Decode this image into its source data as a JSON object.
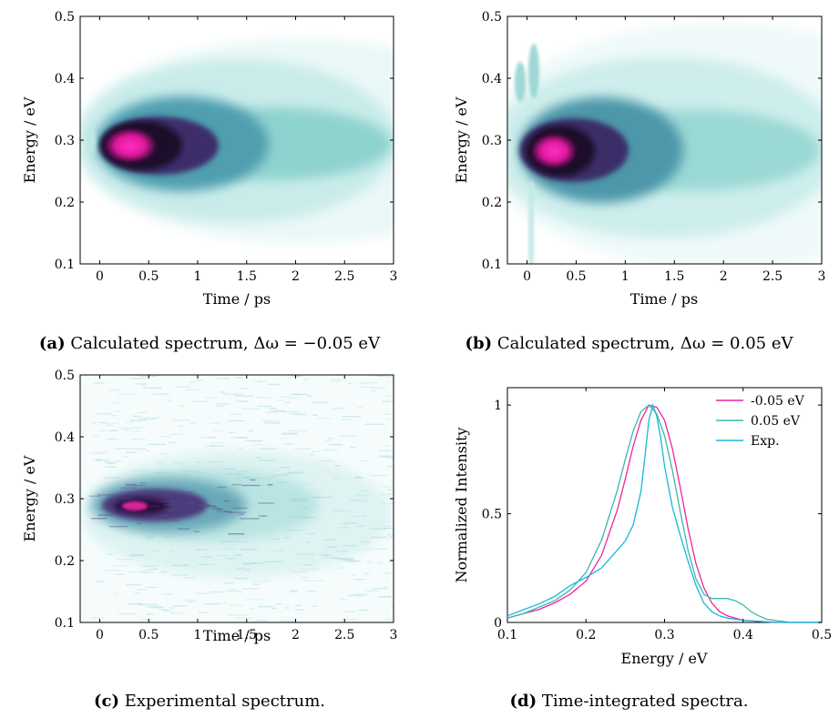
{
  "colors": {
    "light_teal": "#e4f7f6",
    "teal": "#6cc7c2",
    "dark_purple": "#2a0c3a",
    "magenta": "#ff1fb4",
    "line_magenta": "#f0249e",
    "line_teal": "#3ab8ad",
    "line_cyan": "#15b9d8"
  },
  "panels": [
    {
      "id": "a",
      "caption_letter": "(a)",
      "caption_text": "Calculated spectrum, Δω = −0.05 eV",
      "xlabel": "Time / ps",
      "ylabel": "Energy / eV",
      "xticks": [
        "0",
        "0.5",
        "1",
        "1.5",
        "2",
        "2.5",
        "3"
      ],
      "yticks": [
        "0.1",
        "0.2",
        "0.3",
        "0.4",
        "0.5"
      ]
    },
    {
      "id": "b",
      "caption_letter": "(b)",
      "caption_text": "Calculated spectrum, Δω = 0.05 eV",
      "xlabel": "Time / ps",
      "ylabel": "Energy / eV",
      "xticks": [
        "0",
        "0.5",
        "1",
        "1.5",
        "2",
        "2.5",
        "3"
      ],
      "yticks": [
        "0.1",
        "0.2",
        "0.3",
        "0.4",
        "0.5"
      ]
    },
    {
      "id": "c",
      "caption_letter": "(c)",
      "caption_text": "Experimental spectrum.",
      "xlabel": "Time / ps",
      "ylabel": "Energy / eV",
      "xticks": [
        "0",
        "0.5",
        "1",
        "1.5",
        "2",
        "2.5",
        "3"
      ],
      "yticks": [
        "0.1",
        "0.2",
        "0.3",
        "0.4",
        "0.5"
      ]
    },
    {
      "id": "d",
      "caption_letter": "(d)",
      "caption_text": "Time-integrated spectra.",
      "xlabel": "Energy / eV",
      "ylabel": "Normalized Intensity",
      "xticks": [
        "0.1",
        "0.2",
        "0.3",
        "0.4",
        "0.5"
      ],
      "yticks": [
        "0",
        "0.5",
        "1"
      ]
    }
  ],
  "chart_data": [
    {
      "type": "heatmap",
      "panel": "a",
      "xlabel": "Time / ps",
      "ylabel": "Energy / eV",
      "xlim": [
        -0.2,
        3
      ],
      "ylim": [
        0.1,
        0.5
      ],
      "peak": {
        "time": 0.25,
        "energy": 0.285
      },
      "features": [
        {
          "time": -0.05,
          "energy": 0.3,
          "intensity": 0.2
        },
        {
          "time": 0.1,
          "energy": 0.29,
          "intensity": 0.5
        }
      ],
      "colormap": [
        "light teal",
        "teal",
        "dark purple",
        "magenta"
      ]
    },
    {
      "type": "heatmap",
      "panel": "b",
      "xlabel": "Time / ps",
      "ylabel": "Energy / eV",
      "xlim": [
        -0.2,
        3
      ],
      "ylim": [
        0.1,
        0.5
      ],
      "peak": {
        "time": 0.2,
        "energy": 0.275
      },
      "features": [
        {
          "time": -0.1,
          "energy": 0.39,
          "intensity": 0.3
        },
        {
          "time": 0.05,
          "energy": 0.41,
          "intensity": 0.3
        }
      ],
      "colormap": [
        "light teal",
        "teal",
        "dark purple",
        "magenta"
      ]
    },
    {
      "type": "heatmap",
      "panel": "c",
      "xlabel": "Time / ps",
      "ylabel": "Energy / eV",
      "xlim": [
        -0.2,
        3
      ],
      "ylim": [
        0.1,
        0.5
      ],
      "peak": {
        "time": 0.35,
        "energy": 0.285
      },
      "noisy": true,
      "colormap": [
        "light teal",
        "teal",
        "dark purple",
        "magenta"
      ]
    },
    {
      "type": "line",
      "panel": "d",
      "xlabel": "Energy / eV",
      "ylabel": "Normalized Intensity",
      "xlim": [
        0.1,
        0.5
      ],
      "ylim": [
        0,
        1.08
      ],
      "legend": "top-right",
      "series": [
        {
          "name": "-0.05 eV",
          "color": "#f0249e",
          "x": [
            0.1,
            0.12,
            0.14,
            0.16,
            0.18,
            0.2,
            0.22,
            0.24,
            0.25,
            0.26,
            0.27,
            0.28,
            0.29,
            0.3,
            0.31,
            0.32,
            0.33,
            0.34,
            0.35,
            0.36,
            0.37,
            0.38,
            0.39,
            0.4,
            0.42,
            0.44,
            0.46,
            0.5
          ],
          "y": [
            0.02,
            0.04,
            0.06,
            0.09,
            0.13,
            0.19,
            0.31,
            0.52,
            0.66,
            0.81,
            0.93,
            1.0,
            0.99,
            0.93,
            0.8,
            0.62,
            0.43,
            0.27,
            0.16,
            0.09,
            0.05,
            0.03,
            0.02,
            0.01,
            0.005,
            0.0,
            0.0,
            0.0
          ]
        },
        {
          "name": "0.05 eV",
          "color": "#3ab8ad",
          "x": [
            0.1,
            0.12,
            0.14,
            0.16,
            0.18,
            0.2,
            0.22,
            0.24,
            0.25,
            0.26,
            0.27,
            0.28,
            0.29,
            0.3,
            0.31,
            0.32,
            0.33,
            0.34,
            0.35,
            0.36,
            0.37,
            0.38,
            0.39,
            0.4,
            0.41,
            0.42,
            0.43,
            0.44,
            0.46,
            0.5
          ],
          "y": [
            0.02,
            0.04,
            0.07,
            0.1,
            0.15,
            0.23,
            0.38,
            0.61,
            0.75,
            0.88,
            0.97,
            1.0,
            0.96,
            0.86,
            0.7,
            0.51,
            0.33,
            0.2,
            0.13,
            0.11,
            0.11,
            0.11,
            0.1,
            0.08,
            0.05,
            0.03,
            0.015,
            0.01,
            0.0,
            0.0
          ]
        },
        {
          "name": "Exp.",
          "color": "#15b9d8",
          "x": [
            0.1,
            0.12,
            0.14,
            0.16,
            0.18,
            0.2,
            0.22,
            0.24,
            0.25,
            0.26,
            0.27,
            0.275,
            0.28,
            0.285,
            0.29,
            0.295,
            0.3,
            0.31,
            0.32,
            0.33,
            0.34,
            0.35,
            0.36,
            0.37,
            0.38,
            0.4,
            0.42,
            0.45,
            0.5
          ],
          "y": [
            0.03,
            0.05,
            0.07,
            0.1,
            0.15,
            0.19,
            0.24,
            0.33,
            0.38,
            0.46,
            0.62,
            0.78,
            0.93,
            1.0,
            0.95,
            0.85,
            0.72,
            0.53,
            0.4,
            0.28,
            0.17,
            0.09,
            0.05,
            0.03,
            0.02,
            0.01,
            0.005,
            0.0,
            0.0
          ]
        }
      ]
    }
  ]
}
